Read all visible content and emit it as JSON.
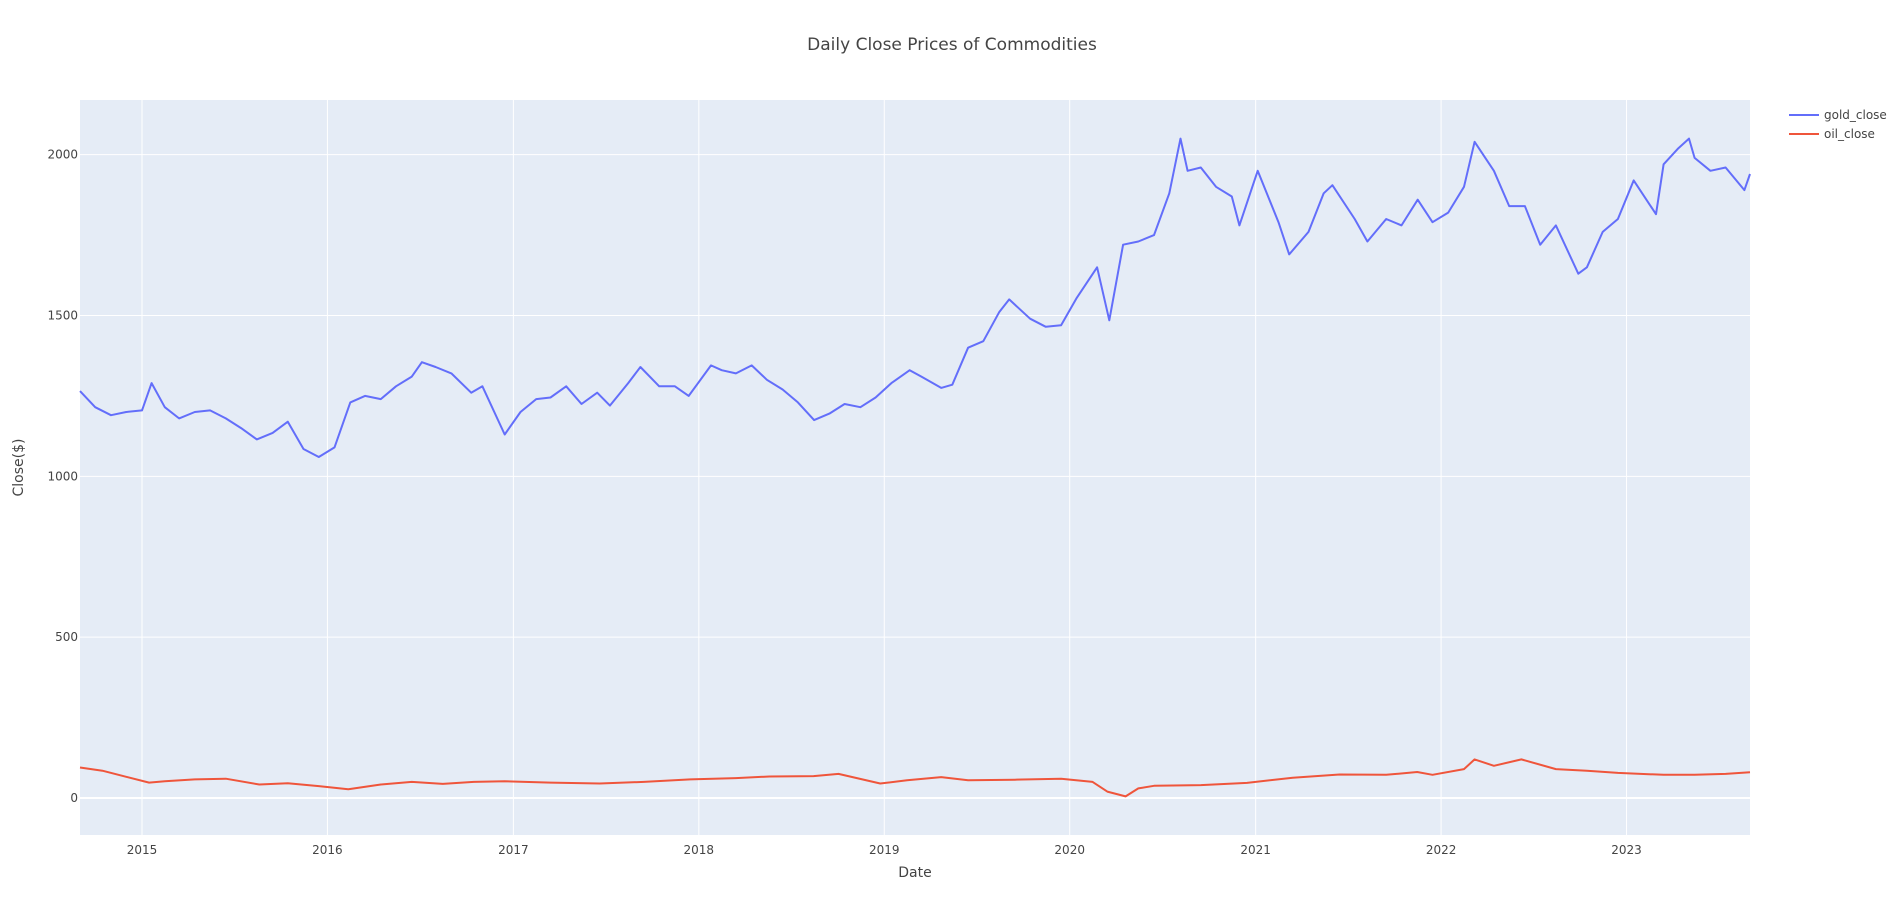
{
  "chart_data": {
    "type": "line",
    "title": "Daily Close Prices of Commodities",
    "xlabel": "Date",
    "ylabel": "Close($)",
    "xlim": [
      "2014-09-01",
      "2023-09-01"
    ],
    "ylim": [
      -115,
      2170
    ],
    "x_ticks": [
      "2015",
      "2016",
      "2017",
      "2018",
      "2019",
      "2020",
      "2021",
      "2022",
      "2023"
    ],
    "y_ticks": [
      0,
      500,
      1000,
      1500,
      2000
    ],
    "grid": true,
    "legend_position": "top-right",
    "colors": {
      "plot_bg": "#E5ECF6",
      "grid": "#FFFFFF",
      "gold": "#636EFA",
      "oil": "#EF553B"
    },
    "series": [
      {
        "name": "gold_close",
        "color": "#636EFA",
        "x": [
          "2014-09-01",
          "2014-10-01",
          "2014-11-01",
          "2014-12-01",
          "2015-01-01",
          "2015-01-20",
          "2015-02-15",
          "2015-03-15",
          "2015-04-15",
          "2015-05-15",
          "2015-06-15",
          "2015-07-15",
          "2015-08-15",
          "2015-09-15",
          "2015-10-15",
          "2015-11-15",
          "2015-12-15",
          "2016-01-15",
          "2016-02-15",
          "2016-03-15",
          "2016-04-15",
          "2016-05-15",
          "2016-06-15",
          "2016-07-05",
          "2016-08-01",
          "2016-09-01",
          "2016-10-10",
          "2016-11-01",
          "2016-12-15",
          "2017-01-15",
          "2017-02-15",
          "2017-03-15",
          "2017-04-15",
          "2017-05-15",
          "2017-06-15",
          "2017-07-10",
          "2017-08-15",
          "2017-09-08",
          "2017-10-15",
          "2017-11-15",
          "2017-12-12",
          "2018-01-25",
          "2018-02-15",
          "2018-03-15",
          "2018-04-15",
          "2018-05-15",
          "2018-06-15",
          "2018-07-15",
          "2018-08-16",
          "2018-09-15",
          "2018-10-15",
          "2018-11-15",
          "2018-12-15",
          "2019-01-15",
          "2019-02-20",
          "2019-03-15",
          "2019-04-23",
          "2019-05-15",
          "2019-06-15",
          "2019-07-15",
          "2019-08-15",
          "2019-09-04",
          "2019-10-15",
          "2019-11-15",
          "2019-12-15",
          "2020-01-15",
          "2020-02-24",
          "2020-03-19",
          "2020-04-15",
          "2020-05-15",
          "2020-06-15",
          "2020-07-15",
          "2020-08-06",
          "2020-08-20",
          "2020-09-15",
          "2020-10-15",
          "2020-11-15",
          "2020-11-30",
          "2021-01-05",
          "2021-02-15",
          "2021-03-08",
          "2021-04-15",
          "2021-05-15",
          "2021-06-01",
          "2021-07-15",
          "2021-08-09",
          "2021-09-15",
          "2021-10-15",
          "2021-11-16",
          "2021-12-15",
          "2022-01-15",
          "2022-02-15",
          "2022-03-08",
          "2022-04-15",
          "2022-05-15",
          "2022-06-15",
          "2022-07-15",
          "2022-08-15",
          "2022-09-28",
          "2022-10-15",
          "2022-11-15",
          "2022-12-15",
          "2023-01-15",
          "2023-02-28",
          "2023-03-15",
          "2023-04-13",
          "2023-05-04",
          "2023-05-15",
          "2023-06-15",
          "2023-07-15",
          "2023-08-21",
          "2023-09-01"
        ],
        "values": [
          1265,
          1215,
          1190,
          1200,
          1205,
          1290,
          1215,
          1180,
          1200,
          1205,
          1180,
          1150,
          1115,
          1135,
          1170,
          1085,
          1060,
          1090,
          1230,
          1250,
          1240,
          1280,
          1310,
          1355,
          1340,
          1320,
          1260,
          1280,
          1130,
          1200,
          1240,
          1245,
          1280,
          1225,
          1260,
          1220,
          1290,
          1340,
          1280,
          1280,
          1250,
          1345,
          1330,
          1320,
          1345,
          1300,
          1270,
          1230,
          1175,
          1195,
          1225,
          1215,
          1245,
          1290,
          1330,
          1310,
          1275,
          1285,
          1400,
          1420,
          1510,
          1550,
          1490,
          1465,
          1470,
          1555,
          1650,
          1485,
          1720,
          1730,
          1750,
          1880,
          2050,
          1950,
          1960,
          1900,
          1870,
          1780,
          1950,
          1790,
          1690,
          1760,
          1880,
          1905,
          1800,
          1730,
          1800,
          1780,
          1860,
          1790,
          1820,
          1900,
          2040,
          1950,
          1840,
          1840,
          1720,
          1780,
          1630,
          1650,
          1760,
          1800,
          1920,
          1815,
          1970,
          2020,
          2050,
          1990,
          1950,
          1960,
          1890,
          1940
        ]
      },
      {
        "name": "oil_close",
        "color": "#EF553B",
        "x": [
          "2014-09-01",
          "2014-10-15",
          "2014-12-01",
          "2015-01-15",
          "2015-02-15",
          "2015-04-15",
          "2015-06-15",
          "2015-08-20",
          "2015-10-15",
          "2015-12-15",
          "2016-02-11",
          "2016-04-15",
          "2016-06-15",
          "2016-08-15",
          "2016-10-15",
          "2016-12-15",
          "2017-03-15",
          "2017-06-20",
          "2017-09-15",
          "2017-12-15",
          "2018-03-15",
          "2018-05-20",
          "2018-08-15",
          "2018-10-03",
          "2018-12-24",
          "2019-02-15",
          "2019-04-23",
          "2019-06-15",
          "2019-09-15",
          "2019-12-15",
          "2020-02-15",
          "2020-03-15",
          "2020-04-20",
          "2020-05-15",
          "2020-06-15",
          "2020-09-15",
          "2020-12-15",
          "2021-03-15",
          "2021-06-15",
          "2021-09-15",
          "2021-11-15",
          "2021-12-15",
          "2022-02-15",
          "2022-03-08",
          "2022-04-15",
          "2022-06-08",
          "2022-08-15",
          "2022-10-15",
          "2022-12-15",
          "2023-03-15",
          "2023-05-15",
          "2023-07-15",
          "2023-09-01"
        ],
        "values": [
          95,
          85,
          66,
          48,
          52,
          58,
          60,
          42,
          46,
          37,
          27,
          42,
          50,
          44,
          50,
          52,
          48,
          45,
          50,
          58,
          62,
          67,
          68,
          75,
          45,
          55,
          65,
          55,
          57,
          60,
          50,
          20,
          5,
          30,
          38,
          40,
          47,
          63,
          73,
          72,
          81,
          72,
          90,
          120,
          100,
          120,
          90,
          85,
          78,
          72,
          72,
          75,
          80
        ]
      }
    ]
  }
}
